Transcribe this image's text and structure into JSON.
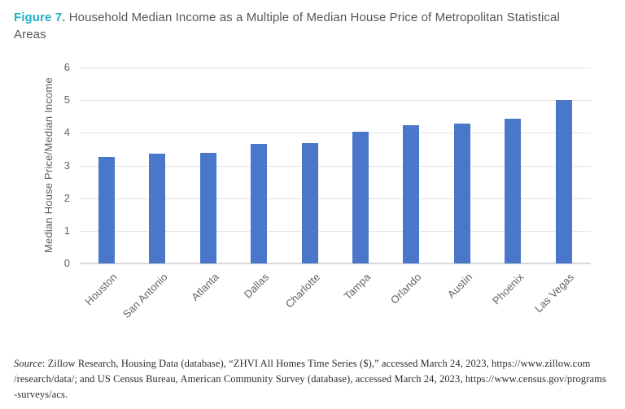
{
  "title": {
    "label": "Figure 7.",
    "text": "Household Median Income as a Multiple of Median House Price of Metropolitan Statistical Areas"
  },
  "chart_data": {
    "type": "bar",
    "title": "Figure 7. Household Median Income as a Multiple of Median House Price of Metropolitan Statistical Areas",
    "categories": [
      "Houston",
      "San Antonio",
      "Atlanta",
      "Dallas",
      "Charlotte",
      "Tampa",
      "Orlando",
      "Austin",
      "Phoenix",
      "Las Vegas"
    ],
    "values": [
      3.26,
      3.35,
      3.39,
      3.66,
      3.69,
      4.04,
      4.24,
      4.28,
      4.44,
      5.0
    ],
    "xlabel": "",
    "ylabel": "Median House Price/Median Income",
    "ylim": [
      0,
      6
    ],
    "yticks": [
      0,
      1,
      2,
      3,
      4,
      5,
      6
    ],
    "grid": true,
    "legend": false,
    "bar_color": "#4a77c9"
  },
  "source": {
    "italic_word": "Source",
    "line1_rest": ": Zillow Research, Housing Data (database), “ZHVI All Homes Time Series ($),” accessed March 24, 2023, https://www.zillow.com",
    "line2": "/research/data/; and US Census Bureau, American Community Survey (database), accessed March 24, 2023, https://www.census.gov/programs",
    "line3": "-surveys/acs."
  },
  "colors": {
    "accent_teal": "#23b0c6",
    "title_gray": "#56575c",
    "bar_blue": "#4a77c9",
    "gridline": "#e4e4e4",
    "axis_line": "#d8d8d8",
    "tick_text": "#636363"
  }
}
